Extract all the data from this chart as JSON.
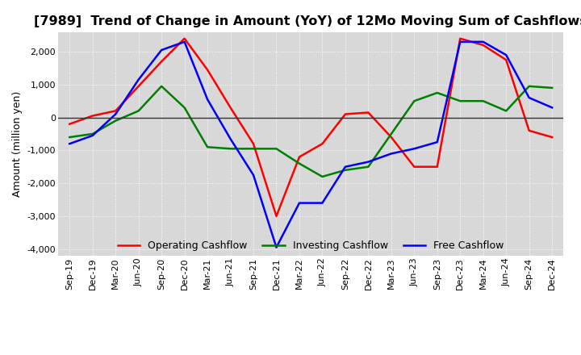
{
  "title": "[7989]  Trend of Change in Amount (YoY) of 12Mo Moving Sum of Cashflows",
  "ylabel": "Amount (million yen)",
  "x_labels": [
    "Sep-19",
    "Dec-19",
    "Mar-20",
    "Jun-20",
    "Sep-20",
    "Dec-20",
    "Mar-21",
    "Jun-21",
    "Sep-21",
    "Dec-21",
    "Mar-22",
    "Jun-22",
    "Sep-22",
    "Dec-22",
    "Mar-23",
    "Jun-23",
    "Sep-23",
    "Dec-23",
    "Mar-24",
    "Jun-24",
    "Sep-24",
    "Dec-24"
  ],
  "operating": [
    -200,
    50,
    200,
    950,
    1700,
    2400,
    1450,
    300,
    -800,
    -3000,
    -1200,
    -800,
    100,
    150,
    -600,
    -1500,
    -1500,
    2400,
    2200,
    1750,
    -400,
    -600
  ],
  "investing": [
    -600,
    -500,
    -100,
    200,
    950,
    300,
    -900,
    -950,
    -950,
    -950,
    -1400,
    -1800,
    -1600,
    -1500,
    -500,
    500,
    750,
    500,
    500,
    200,
    950,
    900
  ],
  "free": [
    -800,
    -550,
    100,
    1150,
    2050,
    2300,
    550,
    -650,
    -1750,
    -3950,
    -2600,
    -2600,
    -1500,
    -1350,
    -1100,
    -950,
    -750,
    2300,
    2300,
    1900,
    600,
    300
  ],
  "ylim": [
    -4200,
    2600
  ],
  "yticks": [
    -4000,
    -3000,
    -2000,
    -1000,
    0,
    1000,
    2000
  ],
  "operating_color": "#ff0000",
  "investing_color": "#008000",
  "free_color": "#0000ff",
  "bg_color": "#ffffff",
  "plot_bg_color": "#d8d8d8",
  "grid_color": "#ffffff",
  "title_fontsize": 11.5,
  "label_fontsize": 9,
  "tick_fontsize": 8,
  "legend_fontsize": 9,
  "linewidth": 1.8
}
